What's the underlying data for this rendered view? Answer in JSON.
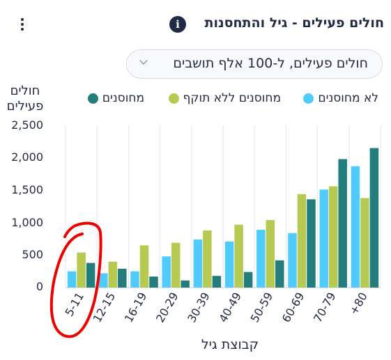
{
  "header": {
    "title": "חולים פעילים - גיל והתחסנות",
    "info_icon": "info-icon",
    "menu_icon": "kebab-menu-icon"
  },
  "dropdown": {
    "value": "חולים פעילים, ל-100 אלף תושבים",
    "icon": "chevron-down-icon"
  },
  "chart_data": {
    "type": "bar",
    "ylabel_line1": "חולים",
    "ylabel_line2": "פעילים",
    "xlabel": "קבוצת גיל",
    "ylim": [
      0,
      2500
    ],
    "yticks": [
      "0",
      "500",
      "1,000",
      "1,500",
      "2,000",
      "2,500"
    ],
    "grid": "vertical",
    "legend_position": "top",
    "categories": [
      "5-11",
      "12-15",
      "16-19",
      "20-29",
      "30-39",
      "40-49",
      "50-59",
      "60-69",
      "70-79",
      "+80"
    ],
    "series": [
      {
        "name": "לא מחוסנים",
        "color": "#50cbfd",
        "values": [
          250,
          220,
          250,
          480,
          740,
          710,
          890,
          840,
          1510,
          1870
        ]
      },
      {
        "name": "מחוסנים ללא תוקף",
        "color": "#b6ca51",
        "values": [
          540,
          400,
          650,
          690,
          880,
          970,
          1040,
          1440,
          1560,
          1380
        ]
      },
      {
        "name": "מחוסנים",
        "color": "#237d7d",
        "values": [
          380,
          290,
          170,
          110,
          180,
          240,
          420,
          1360,
          1980,
          2150
        ]
      }
    ]
  },
  "annotation": {
    "type": "hand-drawn red circle",
    "color": "#ee0000",
    "highlights_category": "5-11"
  }
}
